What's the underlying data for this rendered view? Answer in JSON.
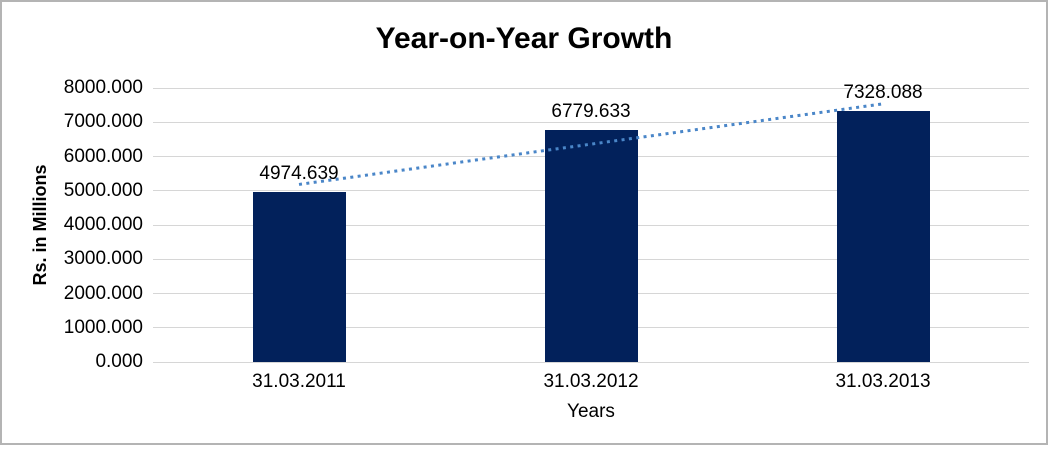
{
  "chart_data": {
    "type": "bar",
    "title": "Year-on-Year Growth",
    "categories": [
      "31.03.2011",
      "31.03.2012",
      "31.03.2013"
    ],
    "values": [
      4974.639,
      6779.633,
      7328.088
    ],
    "data_labels": [
      "4974.639",
      "6779.633",
      "7328.088"
    ],
    "xlabel": "Years",
    "ylabel": "Rs. in Millions",
    "ylim": [
      0,
      8000
    ],
    "ytick_step": 1000,
    "ytick_labels": [
      "0.000",
      "1000.000",
      "2000.000",
      "3000.000",
      "4000.000",
      "5000.000",
      "6000.000",
      "7000.000",
      "8000.000"
    ],
    "grid": true,
    "legend": "none",
    "trendline": {
      "type": "linear",
      "style": "dotted"
    },
    "colors": {
      "bar": "#02215B",
      "trendline": "#4A86C8",
      "gridline": "#D6D6D6",
      "text": "#000000",
      "border": "#B4B4B4",
      "background": "#FFFFFF"
    }
  }
}
